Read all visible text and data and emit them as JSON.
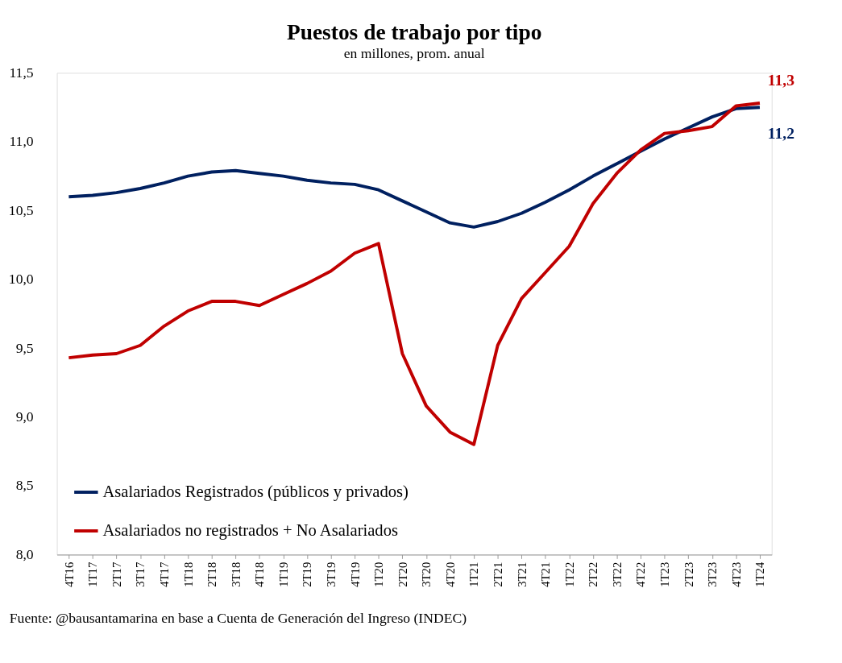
{
  "chart_data": {
    "type": "line",
    "title": "Puestos de trabajo por tipo",
    "subtitle": "en millones, prom. anual",
    "categories": [
      "4T16",
      "1T17",
      "2T17",
      "3T17",
      "4T17",
      "1T18",
      "2T18",
      "3T18",
      "4T18",
      "1T19",
      "2T19",
      "3T19",
      "4T19",
      "1T20",
      "2T20",
      "3T20",
      "4T20",
      "1T21",
      "2T21",
      "3T21",
      "4T21",
      "1T22",
      "2T22",
      "3T22",
      "4T22",
      "1T23",
      "2T23",
      "3T23",
      "4T23",
      "1T24"
    ],
    "series": [
      {
        "name": "Asalariados Registrados (públicos y privados)",
        "color": "#002060",
        "values": [
          10.6,
          10.61,
          10.63,
          10.66,
          10.7,
          10.75,
          10.78,
          10.79,
          10.77,
          10.75,
          10.72,
          10.7,
          10.69,
          10.65,
          10.57,
          10.49,
          10.41,
          10.38,
          10.42,
          10.48,
          10.56,
          10.65,
          10.75,
          10.84,
          10.93,
          11.02,
          11.1,
          11.18,
          11.24,
          11.25
        ]
      },
      {
        "name": "Asalariados no registrados + No Asalariados",
        "color": "#c00000",
        "values": [
          9.43,
          9.45,
          9.46,
          9.52,
          9.66,
          9.77,
          9.84,
          9.84,
          9.81,
          9.89,
          9.97,
          10.06,
          10.19,
          10.26,
          9.46,
          9.08,
          8.89,
          8.8,
          9.52,
          9.86,
          10.05,
          10.24,
          10.55,
          10.77,
          10.94,
          11.06,
          11.08,
          11.11,
          11.26,
          11.28
        ]
      }
    ],
    "ylim": [
      8,
      11.5
    ],
    "yticks": [
      {
        "value": 8,
        "label": "8,0"
      },
      {
        "value": 8.5,
        "label": "8,5"
      },
      {
        "value": 9,
        "label": "9,0"
      },
      {
        "value": 9.5,
        "label": "9,5"
      },
      {
        "value": 10,
        "label": "10,0"
      },
      {
        "value": 10.5,
        "label": "10,5"
      },
      {
        "value": 11,
        "label": "11,0"
      },
      {
        "value": 11.5,
        "label": "11,5"
      }
    ],
    "grid": false,
    "legend": "bottom left",
    "marker": "none",
    "line_style": "solid",
    "annotations": [
      {
        "text": "11,3",
        "x": "1T24",
        "y": 11.28
      },
      {
        "text": "11,2",
        "x": "1T24",
        "y": 11.25
      },
      "Fuente: @bausantamarina en base a Cuenta de Generación del Ingreso (INDEC)"
    ]
  }
}
